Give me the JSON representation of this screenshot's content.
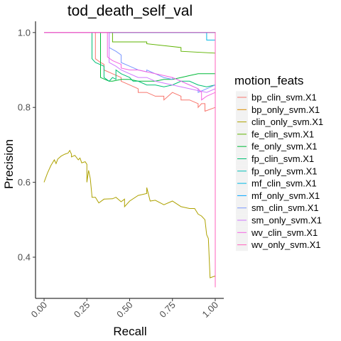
{
  "chart_data": {
    "type": "line",
    "title": "tod_death_self_val",
    "xlabel": "Recall",
    "ylabel": "Precision",
    "xlim": [
      -0.05,
      1.05
    ],
    "ylim": [
      0.29,
      1.03
    ],
    "x_ticks": [
      {
        "value": 0.0,
        "label": "0.00"
      },
      {
        "value": 0.25,
        "label": "0.25"
      },
      {
        "value": 0.5,
        "label": "0.50"
      },
      {
        "value": 0.75,
        "label": "0.75"
      },
      {
        "value": 1.0,
        "label": "1.00"
      }
    ],
    "y_ticks": [
      {
        "value": 0.4,
        "label": "0.4"
      },
      {
        "value": 0.6,
        "label": "0.6"
      },
      {
        "value": 0.8,
        "label": "0.8"
      },
      {
        "value": 1.0,
        "label": "1.0"
      }
    ],
    "grid": false,
    "legend": {
      "title": "motion_feats",
      "position": "right"
    },
    "series": [
      {
        "name": "bp_clin_svm.X1",
        "color": "#F8766D",
        "x": [
          0,
          0.3,
          0.3,
          0.33,
          0.35,
          0.35,
          0.4,
          0.45,
          0.45,
          0.5,
          0.55,
          0.55,
          0.6,
          0.65,
          0.7,
          0.7,
          0.75,
          0.8,
          0.8,
          0.85,
          0.9,
          0.9,
          0.92,
          0.94,
          0.94,
          1.0,
          1.0
        ],
        "y": [
          1.0,
          1.0,
          0.93,
          0.92,
          0.915,
          0.9,
          0.89,
          0.88,
          0.87,
          0.86,
          0.85,
          0.84,
          0.84,
          0.83,
          0.83,
          0.82,
          0.84,
          0.83,
          0.82,
          0.82,
          0.81,
          0.8,
          0.81,
          0.81,
          0.79,
          0.8,
          0.35
        ]
      },
      {
        "name": "bp_only_svm.X1",
        "color": "#DB8E00",
        "x": [
          0,
          1.0,
          1.0
        ],
        "y": [
          1.0,
          1.0,
          0.33
        ]
      },
      {
        "name": "clin_only_svm.X1",
        "color": "#AEA200",
        "x": [
          0,
          0.02,
          0.04,
          0.06,
          0.07,
          0.08,
          0.1,
          0.12,
          0.14,
          0.15,
          0.16,
          0.16,
          0.18,
          0.2,
          0.21,
          0.22,
          0.24,
          0.25,
          0.25,
          0.26,
          0.27,
          0.28,
          0.28,
          0.3,
          0.32,
          0.35,
          0.4,
          0.42,
          0.45,
          0.47,
          0.47,
          0.5,
          0.55,
          0.6,
          0.6,
          0.62,
          0.65,
          0.7,
          0.75,
          0.8,
          0.85,
          0.88,
          0.9,
          0.92,
          0.94,
          0.95,
          0.96,
          0.97,
          1.0,
          1.0
        ],
        "y": [
          0.6,
          0.625,
          0.645,
          0.66,
          0.65,
          0.662,
          0.67,
          0.675,
          0.678,
          0.685,
          0.675,
          0.668,
          0.672,
          0.66,
          0.665,
          0.652,
          0.655,
          0.648,
          0.6,
          0.632,
          0.61,
          0.562,
          0.56,
          0.56,
          0.545,
          0.555,
          0.556,
          0.56,
          0.548,
          0.555,
          0.535,
          0.55,
          0.565,
          0.57,
          0.586,
          0.55,
          0.552,
          0.54,
          0.55,
          0.535,
          0.53,
          0.53,
          0.515,
          0.51,
          0.5,
          0.46,
          0.45,
          0.345,
          0.35,
          0.32
        ]
      },
      {
        "name": "fe_clin_svm.X1",
        "color": "#5EB300",
        "x": [
          0,
          0.4,
          0.4,
          0.6,
          0.6,
          0.8,
          0.8,
          1.0,
          1.0
        ],
        "y": [
          1.0,
          1.0,
          0.975,
          0.975,
          0.97,
          0.96,
          0.95,
          0.945,
          0.35
        ]
      },
      {
        "name": "fe_only_svm.X1",
        "color": "#00BA38",
        "x": [
          0,
          0.33,
          0.33,
          0.38,
          0.4,
          0.45,
          0.5,
          0.55,
          0.6,
          0.65,
          0.7,
          0.75,
          0.8,
          0.85,
          0.9,
          0.95,
          1.0,
          1.0
        ],
        "y": [
          1.0,
          1.0,
          0.88,
          0.87,
          0.87,
          0.875,
          0.875,
          0.87,
          0.87,
          0.87,
          0.875,
          0.875,
          0.88,
          0.885,
          0.89,
          0.89,
          0.89,
          0.35
        ]
      },
      {
        "name": "fp_clin_svm.X1",
        "color": "#00BF74",
        "x": [
          0,
          0.28,
          0.28,
          0.3,
          0.35,
          0.35,
          0.38,
          0.4,
          0.42,
          0.42,
          0.45,
          0.5,
          0.52,
          0.55,
          0.6,
          0.65,
          0.7,
          0.75,
          0.8,
          0.85,
          0.9,
          0.95,
          1.0,
          1.0
        ],
        "y": [
          1.0,
          1.0,
          0.93,
          0.92,
          0.91,
          0.88,
          0.87,
          0.88,
          0.875,
          0.9,
          0.89,
          0.88,
          0.87,
          0.87,
          0.86,
          0.86,
          0.855,
          0.86,
          0.87,
          0.87,
          0.86,
          0.855,
          0.86,
          0.35
        ]
      },
      {
        "name": "fp_only_svm.X1",
        "color": "#00C0B8",
        "x": [
          0,
          1.0,
          1.0
        ],
        "y": [
          1.0,
          1.0,
          0.33
        ]
      },
      {
        "name": "mf_clin_svm.X1",
        "color": "#00B8E5",
        "x": [
          0,
          0.95,
          0.95,
          1.0,
          1.0
        ],
        "y": [
          1.0,
          1.0,
          0.98,
          0.98,
          0.35
        ]
      },
      {
        "name": "mf_only_svm.X1",
        "color": "#00A5FF",
        "x": [
          0,
          1.0,
          1.0
        ],
        "y": [
          1.0,
          1.0,
          0.33
        ]
      },
      {
        "name": "sm_clin_svm.X1",
        "color": "#7997FF",
        "x": [
          0,
          0.38,
          0.38,
          0.42,
          0.45,
          0.45,
          0.5,
          0.55,
          0.6,
          0.6,
          0.65,
          0.7,
          0.75,
          0.75,
          0.8,
          0.85,
          0.9,
          0.9,
          0.95,
          1.0,
          1.0
        ],
        "y": [
          1.0,
          1.0,
          0.96,
          0.95,
          0.94,
          0.92,
          0.91,
          0.9,
          0.895,
          0.9,
          0.89,
          0.88,
          0.875,
          0.88,
          0.87,
          0.86,
          0.85,
          0.84,
          0.85,
          0.86,
          0.35
        ]
      },
      {
        "name": "sm_only_svm.X1",
        "color": "#D078FF",
        "x": [
          0,
          0.38,
          0.38,
          0.42,
          0.45,
          0.5,
          0.55,
          0.6,
          0.65,
          0.7,
          0.75,
          0.8,
          0.85,
          0.9,
          0.95,
          1.0,
          1.0
        ],
        "y": [
          1.0,
          1.0,
          0.92,
          0.91,
          0.9,
          0.89,
          0.88,
          0.88,
          0.87,
          0.865,
          0.86,
          0.855,
          0.85,
          0.845,
          0.84,
          0.85,
          0.35
        ]
      },
      {
        "name": "wv_clin_svm.X1",
        "color": "#F464E2",
        "x": [
          0,
          0.37,
          0.37,
          0.4,
          0.45,
          0.45,
          0.5,
          0.55,
          0.6,
          0.65,
          0.7,
          0.75,
          0.8,
          0.85,
          0.9,
          0.92,
          0.92,
          0.95,
          1.0,
          1.0
        ],
        "y": [
          1.0,
          1.0,
          0.935,
          0.925,
          0.915,
          0.905,
          0.9,
          0.9,
          0.895,
          0.89,
          0.885,
          0.88,
          0.87,
          0.86,
          0.85,
          0.84,
          0.82,
          0.83,
          0.84,
          0.35
        ]
      },
      {
        "name": "wv_only_svm.X1",
        "color": "#FF62BC",
        "x": [
          0,
          1.0,
          1.0
        ],
        "y": [
          1.0,
          1.0,
          0.32
        ]
      }
    ]
  }
}
